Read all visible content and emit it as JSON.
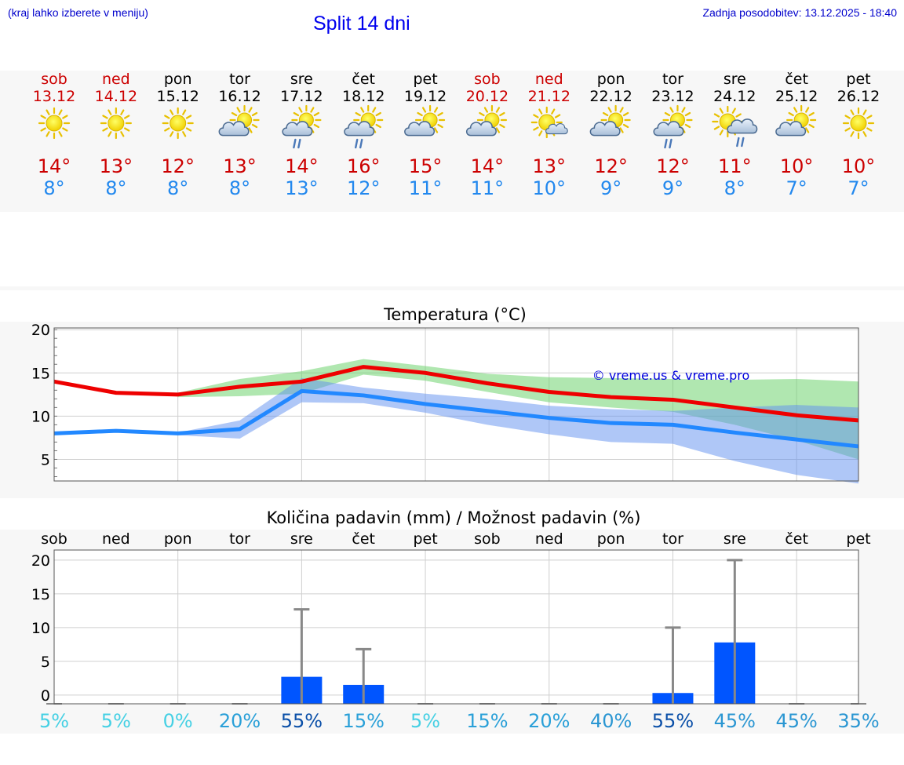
{
  "header": {
    "hint": "(kraj lahko izberete v meniju)",
    "title": "Split 14 dni",
    "updated": "Zadnja posodobitev: 13.12.2025 - 18:40"
  },
  "colors": {
    "weekend": "#cc0000",
    "weekday": "#000000",
    "tmax": "#cc0000",
    "tmin": "#2288ee",
    "maxLine": "#ee0000",
    "minLine": "#2288ff",
    "maxBand": "#6fd46f",
    "minBand": "#5f8ff0",
    "bar": "#0055ff",
    "whisker": "#888888"
  },
  "days": [
    {
      "name": "sob",
      "date": "13.12",
      "weekend": true,
      "icon": "sun-icon",
      "tmax": "14°",
      "tmin": "8°"
    },
    {
      "name": "ned",
      "date": "14.12",
      "weekend": true,
      "icon": "sun-icon",
      "tmax": "13°",
      "tmin": "8°"
    },
    {
      "name": "pon",
      "date": "15.12",
      "weekend": false,
      "icon": "sun-icon",
      "tmax": "12°",
      "tmin": "8°"
    },
    {
      "name": "tor",
      "date": "16.12",
      "weekend": false,
      "icon": "sun-cloud-icon",
      "tmax": "13°",
      "tmin": "8°"
    },
    {
      "name": "sre",
      "date": "17.12",
      "weekend": false,
      "icon": "sun-cloud-rain-icon",
      "tmax": "14°",
      "tmin": "13°"
    },
    {
      "name": "čet",
      "date": "18.12",
      "weekend": false,
      "icon": "sun-cloud-rain-icon",
      "tmax": "16°",
      "tmin": "12°"
    },
    {
      "name": "pet",
      "date": "19.12",
      "weekend": false,
      "icon": "sun-cloud-icon",
      "tmax": "15°",
      "tmin": "11°"
    },
    {
      "name": "sob",
      "date": "20.12",
      "weekend": true,
      "icon": "sun-cloud-icon",
      "tmax": "14°",
      "tmin": "11°"
    },
    {
      "name": "ned",
      "date": "21.12",
      "weekend": true,
      "icon": "sun-small-cloud-icon",
      "tmax": "13°",
      "tmin": "10°"
    },
    {
      "name": "pon",
      "date": "22.12",
      "weekend": false,
      "icon": "sun-cloud-icon",
      "tmax": "12°",
      "tmin": "9°"
    },
    {
      "name": "tor",
      "date": "23.12",
      "weekend": false,
      "icon": "sun-cloud-rain-icon",
      "tmax": "12°",
      "tmin": "9°"
    },
    {
      "name": "sre",
      "date": "24.12",
      "weekend": false,
      "icon": "sun-rain-cloud-icon",
      "tmax": "11°",
      "tmin": "8°"
    },
    {
      "name": "čet",
      "date": "25.12",
      "weekend": false,
      "icon": "sun-cloud-icon",
      "tmax": "10°",
      "tmin": "7°"
    },
    {
      "name": "pet",
      "date": "26.12",
      "weekend": false,
      "icon": "sun-icon",
      "tmax": "10°",
      "tmin": "7°"
    }
  ],
  "chart_data": [
    {
      "type": "line",
      "title": "Temperatura (°C)",
      "watermark": "© vreme.us & vreme.pro",
      "x": [
        0,
        1,
        2,
        3,
        4,
        5,
        6,
        7,
        8,
        9,
        10,
        11,
        12,
        13
      ],
      "ylim": [
        2.5,
        20.2
      ],
      "yticks": [
        5,
        10,
        15,
        20
      ],
      "grid": true,
      "series": [
        {
          "name": "max",
          "values": [
            14.0,
            12.7,
            12.5,
            13.4,
            14.0,
            15.7,
            15.0,
            13.8,
            12.8,
            12.2,
            11.9,
            11.0,
            10.1,
            9.5
          ],
          "band_lower": [
            null,
            null,
            12.2,
            12.3,
            12.6,
            14.8,
            14.1,
            12.8,
            11.6,
            11.0,
            10.5,
            9.0,
            7.2,
            5.0
          ],
          "band_upper": [
            null,
            null,
            12.7,
            14.3,
            15.2,
            16.6,
            15.8,
            14.9,
            14.5,
            14.4,
            14.3,
            14.2,
            14.3,
            14.0
          ]
        },
        {
          "name": "min",
          "values": [
            8.0,
            8.3,
            8.0,
            8.5,
            12.9,
            12.4,
            11.4,
            10.6,
            9.8,
            9.2,
            9.0,
            8.1,
            7.3,
            6.5
          ],
          "band_lower": [
            null,
            null,
            7.8,
            7.4,
            11.6,
            11.5,
            10.4,
            9.0,
            7.9,
            7.0,
            6.8,
            4.8,
            3.2,
            2.2
          ],
          "band_upper": [
            null,
            null,
            8.1,
            9.5,
            14.4,
            13.3,
            12.6,
            12.0,
            11.2,
            10.8,
            10.6,
            11.0,
            11.3,
            11.0
          ]
        }
      ]
    },
    {
      "type": "bar",
      "title": "Količina padavin (mm) / Možnost padavin (%)",
      "categories": [
        "sob",
        "ned",
        "pon",
        "tor",
        "sre",
        "čet",
        "pet",
        "sob",
        "ned",
        "pon",
        "tor",
        "sre",
        "čet",
        "pet"
      ],
      "values": [
        0,
        0,
        0,
        0,
        2.7,
        1.5,
        0,
        0,
        0,
        0,
        0.3,
        7.8,
        0,
        0
      ],
      "whisker_max": [
        0,
        0,
        0,
        0,
        12.7,
        6.8,
        0,
        0,
        0,
        0,
        10.0,
        20.0,
        0,
        0
      ],
      "probability": [
        "5%",
        "5%",
        "0%",
        "20%",
        "55%",
        "15%",
        "5%",
        "15%",
        "20%",
        "40%",
        "55%",
        "45%",
        "45%",
        "35%"
      ],
      "probability_values": [
        5,
        5,
        0,
        20,
        55,
        15,
        5,
        15,
        20,
        40,
        55,
        45,
        45,
        35
      ],
      "ylim": [
        -1.3,
        21.5
      ],
      "yticks": [
        0,
        5,
        10,
        15,
        20
      ],
      "grid": true
    }
  ]
}
